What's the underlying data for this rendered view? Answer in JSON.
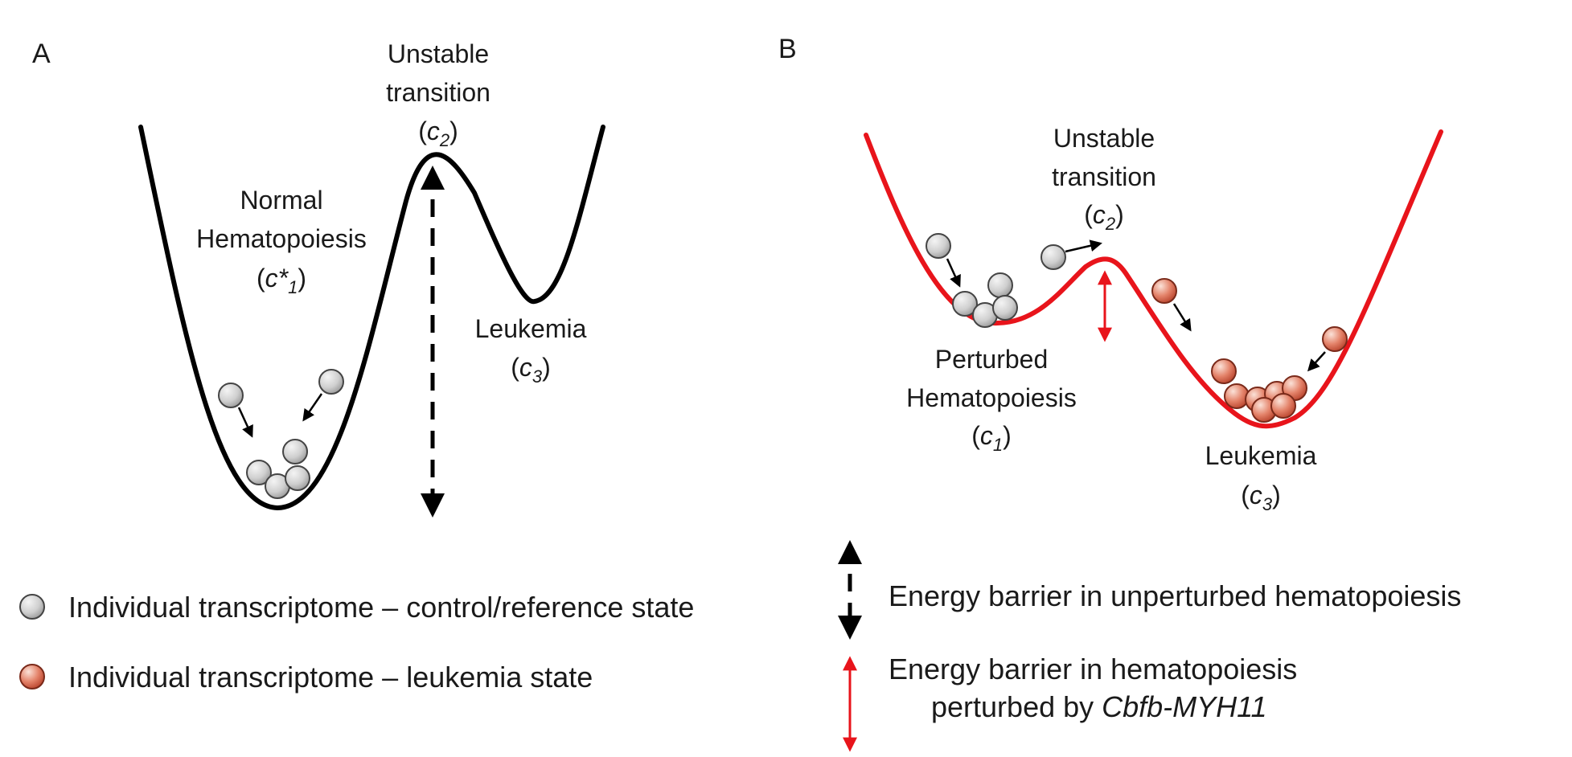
{
  "panels": {
    "A": {
      "letter": "A",
      "transition": {
        "line1": "Unstable",
        "line2": "transition",
        "sym": "c",
        "sub": "2"
      },
      "normal": {
        "line1": "Normal",
        "line2": "Hematopoiesis",
        "sym": "c*",
        "sub": "1"
      },
      "leukemia": {
        "line1": "Leukemia",
        "sym": "c",
        "sub": "3"
      }
    },
    "B": {
      "letter": "B",
      "transition": {
        "line1": "Unstable",
        "line2": "transition",
        "sym": "c",
        "sub": "2"
      },
      "perturbed": {
        "line1": "Perturbed",
        "line2": "Hematopoiesis",
        "sym": "c",
        "sub": "1"
      },
      "leukemia": {
        "line1": "Leukemia",
        "sym": "c",
        "sub": "3"
      }
    }
  },
  "legend": {
    "grey_ball": "Individual transcriptome – control/reference state",
    "red_ball": "Individual transcriptome – leukemia state",
    "black_arrow": "Energy barrier in unperturbed hematopoiesis",
    "red_arrow_line1": "Energy barrier in hematopoiesis",
    "red_arrow_line2_prefix": "perturbed by ",
    "red_arrow_line2_gene": "Cbfb-MYH11"
  },
  "colors": {
    "landscape_normal": "#000000",
    "landscape_perturbed": "#e8141b",
    "grey_ball": "#c8c8c8",
    "red_ball": "#d96a52",
    "arrow_black": "#000000",
    "arrow_red": "#e8141b"
  }
}
